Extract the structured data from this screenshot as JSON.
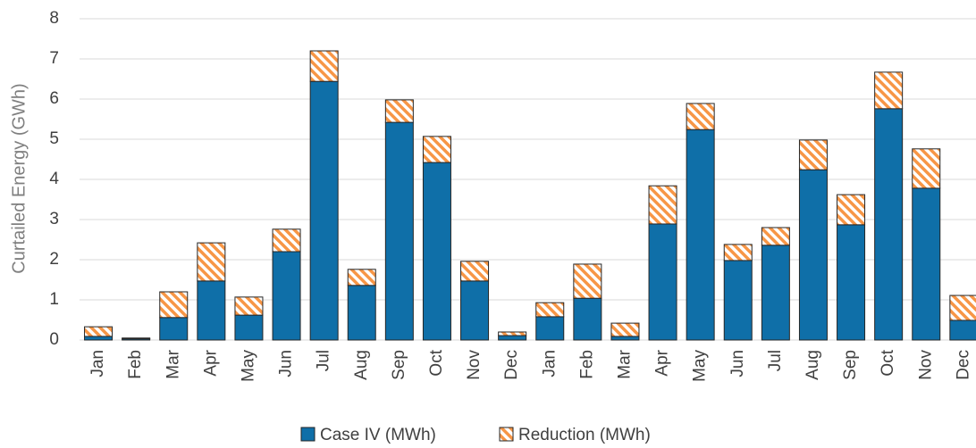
{
  "chart_data": {
    "type": "stacked_bar",
    "ylabel": "Curtailed Energy (GWh)",
    "categories": [
      "Jan",
      "Feb",
      "Mar",
      "Apr",
      "May",
      "Jun",
      "Jul",
      "Aug",
      "Sep",
      "Oct",
      "Nov",
      "Dec",
      "Jan",
      "Feb",
      "Mar",
      "Apr",
      "May",
      "Jun",
      "Jul",
      "Aug",
      "Sep",
      "Oct",
      "Nov",
      "Dec"
    ],
    "series": [
      {
        "name": "Case IV (MWh)",
        "color": "#0f6fa8",
        "values": [
          0.09,
          0.03,
          0.56,
          1.47,
          0.62,
          2.2,
          6.44,
          1.36,
          5.42,
          4.42,
          1.47,
          0.11,
          0.58,
          1.04,
          0.09,
          2.89,
          5.24,
          1.98,
          2.36,
          4.24,
          2.87,
          5.76,
          3.78,
          0.49
        ]
      },
      {
        "name": "Reduction (MWh)",
        "color": "#f79646",
        "hatch": true,
        "values": [
          0.24,
          0.02,
          0.64,
          0.95,
          0.45,
          0.56,
          0.76,
          0.4,
          0.56,
          0.65,
          0.49,
          0.09,
          0.35,
          0.85,
          0.33,
          0.95,
          0.65,
          0.4,
          0.44,
          0.74,
          0.75,
          0.91,
          0.98,
          0.62
        ]
      }
    ],
    "ylim": [
      0,
      8
    ],
    "yticks": [
      0,
      1,
      2,
      3,
      4,
      5,
      6,
      7,
      8
    ],
    "grid": true,
    "legend": "bottom"
  }
}
